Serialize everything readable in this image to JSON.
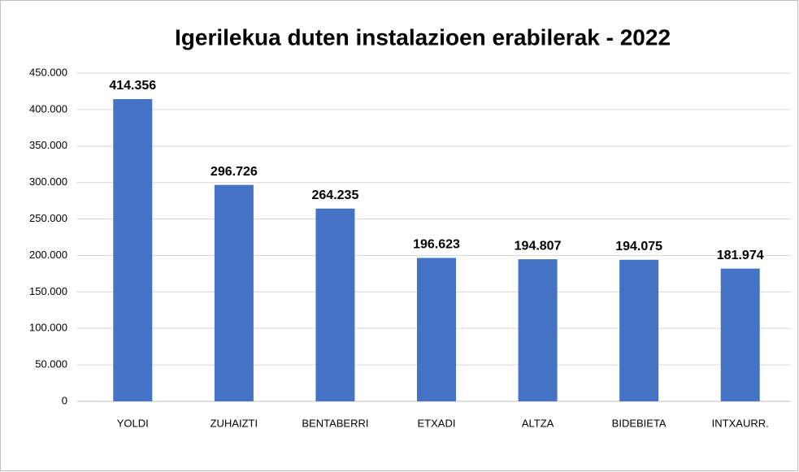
{
  "chart_data": {
    "type": "bar",
    "title": "Igerilekua duten instalazioen erabilerak - 2022",
    "categories": [
      "YOLDI",
      "ZUHAIZTI",
      "BENTABERRI",
      "ETXADI",
      "ALTZA",
      "BIDEBIETA",
      "INTXAURR."
    ],
    "values": [
      414356,
      296726,
      264235,
      196623,
      194807,
      194075,
      181974
    ],
    "value_labels": [
      "414.356",
      "296.726",
      "264.235",
      "196.623",
      "194.807",
      "194.075",
      "181.974"
    ],
    "color": "#4472c4",
    "ylim": [
      0,
      450000
    ],
    "yticks": [
      0,
      {
        "value": 50000,
        "label": "50.000"
      },
      {
        "value": 100000,
        "label": "100.000"
      },
      {
        "value": 150000,
        "label": "150.000"
      },
      {
        "value": 200000,
        "label": "200.000"
      },
      {
        "value": 250000,
        "label": "250.000"
      },
      {
        "value": 300000,
        "label": "300.000"
      },
      {
        "value": 350000,
        "label": "350.000"
      },
      {
        "value": 400000,
        "label": "400.000"
      },
      {
        "value": 450000,
        "label": "450.000"
      }
    ],
    "grid": true
  }
}
